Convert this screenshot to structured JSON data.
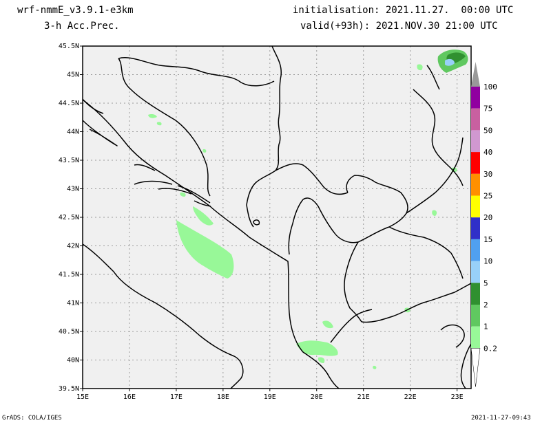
{
  "header": {
    "model": "wrf-nmmE_v3.9.1-e3km",
    "product": "3-h Acc.Prec.",
    "init": "initialisation: 2021.11.27.  00:00 UTC",
    "valid": "valid(+93h): 2021.NOV.30 21:00 UTC"
  },
  "footer": {
    "credit": "GrADS: COLA/IGES",
    "timestamp": "2021-11-27-09:43"
  },
  "map": {
    "lat_labels": [
      "45.5N",
      "45N",
      "44.5N",
      "44N",
      "43.5N",
      "43N",
      "42.5N",
      "42N",
      "41.5N",
      "41N",
      "40.5N",
      "40N",
      "39.5N"
    ],
    "lon_labels": [
      "15E",
      "16E",
      "17E",
      "18E",
      "19E",
      "20E",
      "21E",
      "22E",
      "23E"
    ],
    "colors": {
      "land": "#f0f0f0",
      "frame": "#000000",
      "grid": "#9a9a9a",
      "precip_light": "#98f898",
      "precip_mid": "#60c860",
      "precip_dark": "#30a030",
      "precip_blue": "#98d0f8"
    }
  },
  "legend": {
    "bins": [
      {
        "label": "100",
        "color": "#999999"
      },
      {
        "label": "75",
        "color": "#9000a0"
      },
      {
        "label": "50",
        "color": "#c860a0"
      },
      {
        "label": "40",
        "color": "#d098d0"
      },
      {
        "label": "30",
        "color": "#ff0000"
      },
      {
        "label": "25",
        "color": "#ff9000"
      },
      {
        "label": "20",
        "color": "#ffff00"
      },
      {
        "label": "15",
        "color": "#3030c8"
      },
      {
        "label": "10",
        "color": "#50a0f0"
      },
      {
        "label": "5",
        "color": "#98d0f8"
      },
      {
        "label": "2",
        "color": "#309030"
      },
      {
        "label": "1",
        "color": "#60c860"
      },
      {
        "label": "0.2",
        "color": "#98f898"
      }
    ]
  }
}
